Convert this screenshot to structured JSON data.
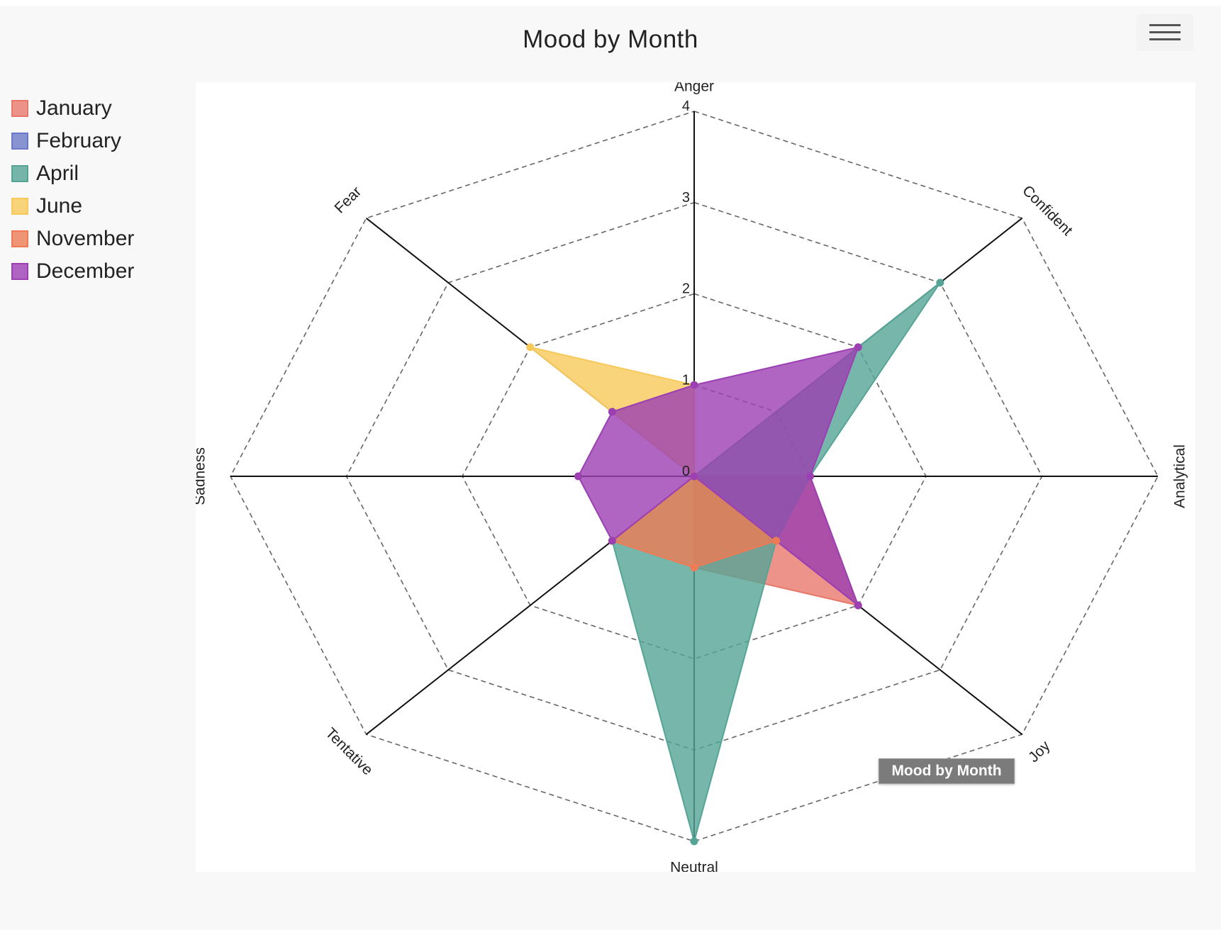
{
  "header": {
    "title": "Mood by Month",
    "menu_icon": "hamburger-menu-icon"
  },
  "tooltip": {
    "text": "Mood by Month"
  },
  "chart_data": {
    "type": "radar",
    "title": "Mood by Month",
    "axes": [
      "Anger",
      "Confident",
      "Analytical",
      "Joy",
      "Neutral",
      "Tentative",
      "Sadness",
      "Fear"
    ],
    "tick_labels": [
      "0",
      "1",
      "2",
      "3",
      "4"
    ],
    "range": [
      0,
      4
    ],
    "grid": "dashed",
    "legend_position": "left",
    "series": [
      {
        "name": "January",
        "color": "#e8786c",
        "values": [
          1,
          0,
          1,
          2,
          1,
          0,
          0,
          0
        ]
      },
      {
        "name": "February",
        "color": "#6b79c8",
        "values": [
          0,
          0,
          0,
          0,
          0,
          0,
          0,
          0
        ]
      },
      {
        "name": "April",
        "color": "#55a596",
        "values": [
          0,
          3,
          1,
          1,
          4,
          1,
          0,
          0
        ]
      },
      {
        "name": "June",
        "color": "#f7c95a",
        "values": [
          1,
          0,
          0,
          0,
          0,
          0,
          0,
          2
        ]
      },
      {
        "name": "November",
        "color": "#ee7b55",
        "values": [
          0,
          0,
          0,
          1,
          1,
          1,
          0,
          0
        ]
      },
      {
        "name": "December",
        "color": "#9b3fb2",
        "values": [
          1,
          2,
          1,
          2,
          0,
          1,
          1,
          1
        ]
      }
    ]
  }
}
